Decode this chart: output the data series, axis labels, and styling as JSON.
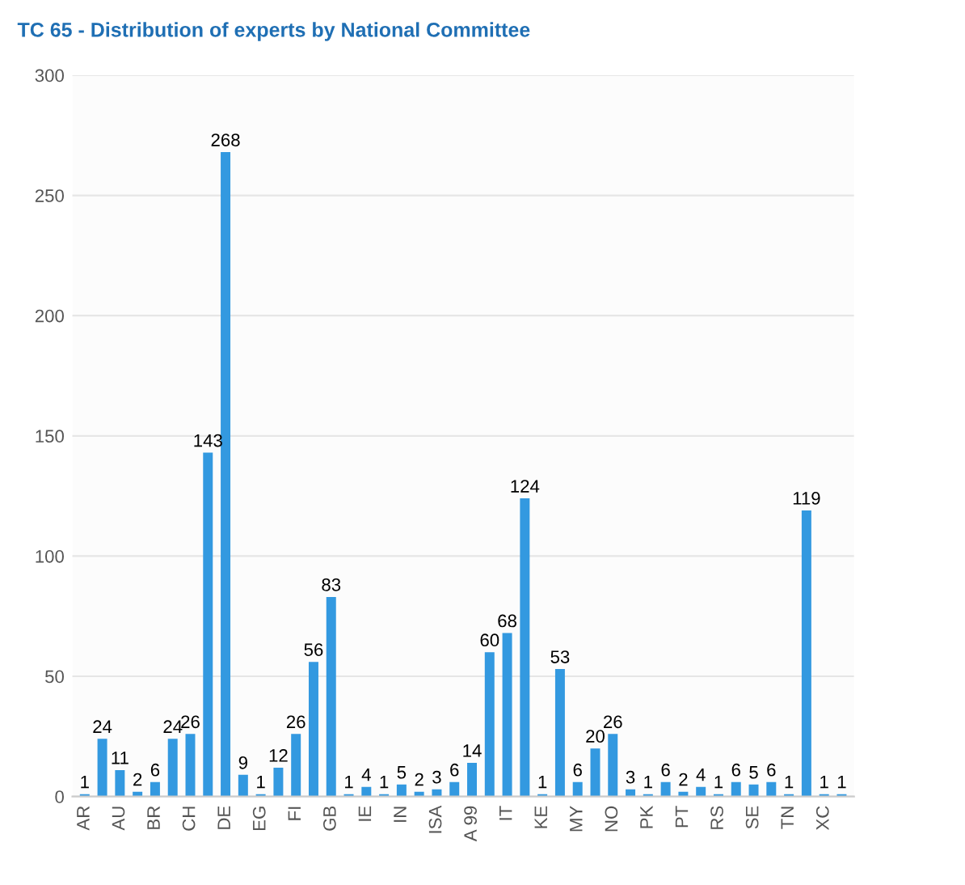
{
  "chart_data": {
    "type": "bar",
    "title": "TC 65 - Distribution of experts by National Committee",
    "categories": [
      "AR",
      null,
      "AU",
      null,
      "BR",
      null,
      "CH",
      null,
      "DE",
      null,
      "EG",
      null,
      "FI",
      null,
      "GB",
      null,
      "IE",
      null,
      "IN",
      null,
      "ISA",
      null,
      "A 99",
      null,
      "IT",
      null,
      "KE",
      null,
      "MY",
      null,
      "NO",
      null,
      "PK",
      null,
      "PT",
      null,
      "RS",
      null,
      "SE",
      null,
      "TN",
      null,
      "XC",
      null
    ],
    "values": [
      1,
      24,
      11,
      2,
      6,
      24,
      26,
      143,
      268,
      9,
      1,
      12,
      26,
      56,
      83,
      1,
      4,
      1,
      5,
      2,
      3,
      6,
      14,
      60,
      68,
      124,
      1,
      53,
      6,
      20,
      26,
      3,
      1,
      6,
      2,
      4,
      1,
      6,
      5,
      6,
      1,
      119,
      1,
      1
    ],
    "color": "#3399e0",
    "ylim": [
      0,
      300
    ],
    "yticks": [
      0,
      50,
      100,
      150,
      200,
      250,
      300
    ],
    "grid": "y",
    "data_labels": true
  }
}
